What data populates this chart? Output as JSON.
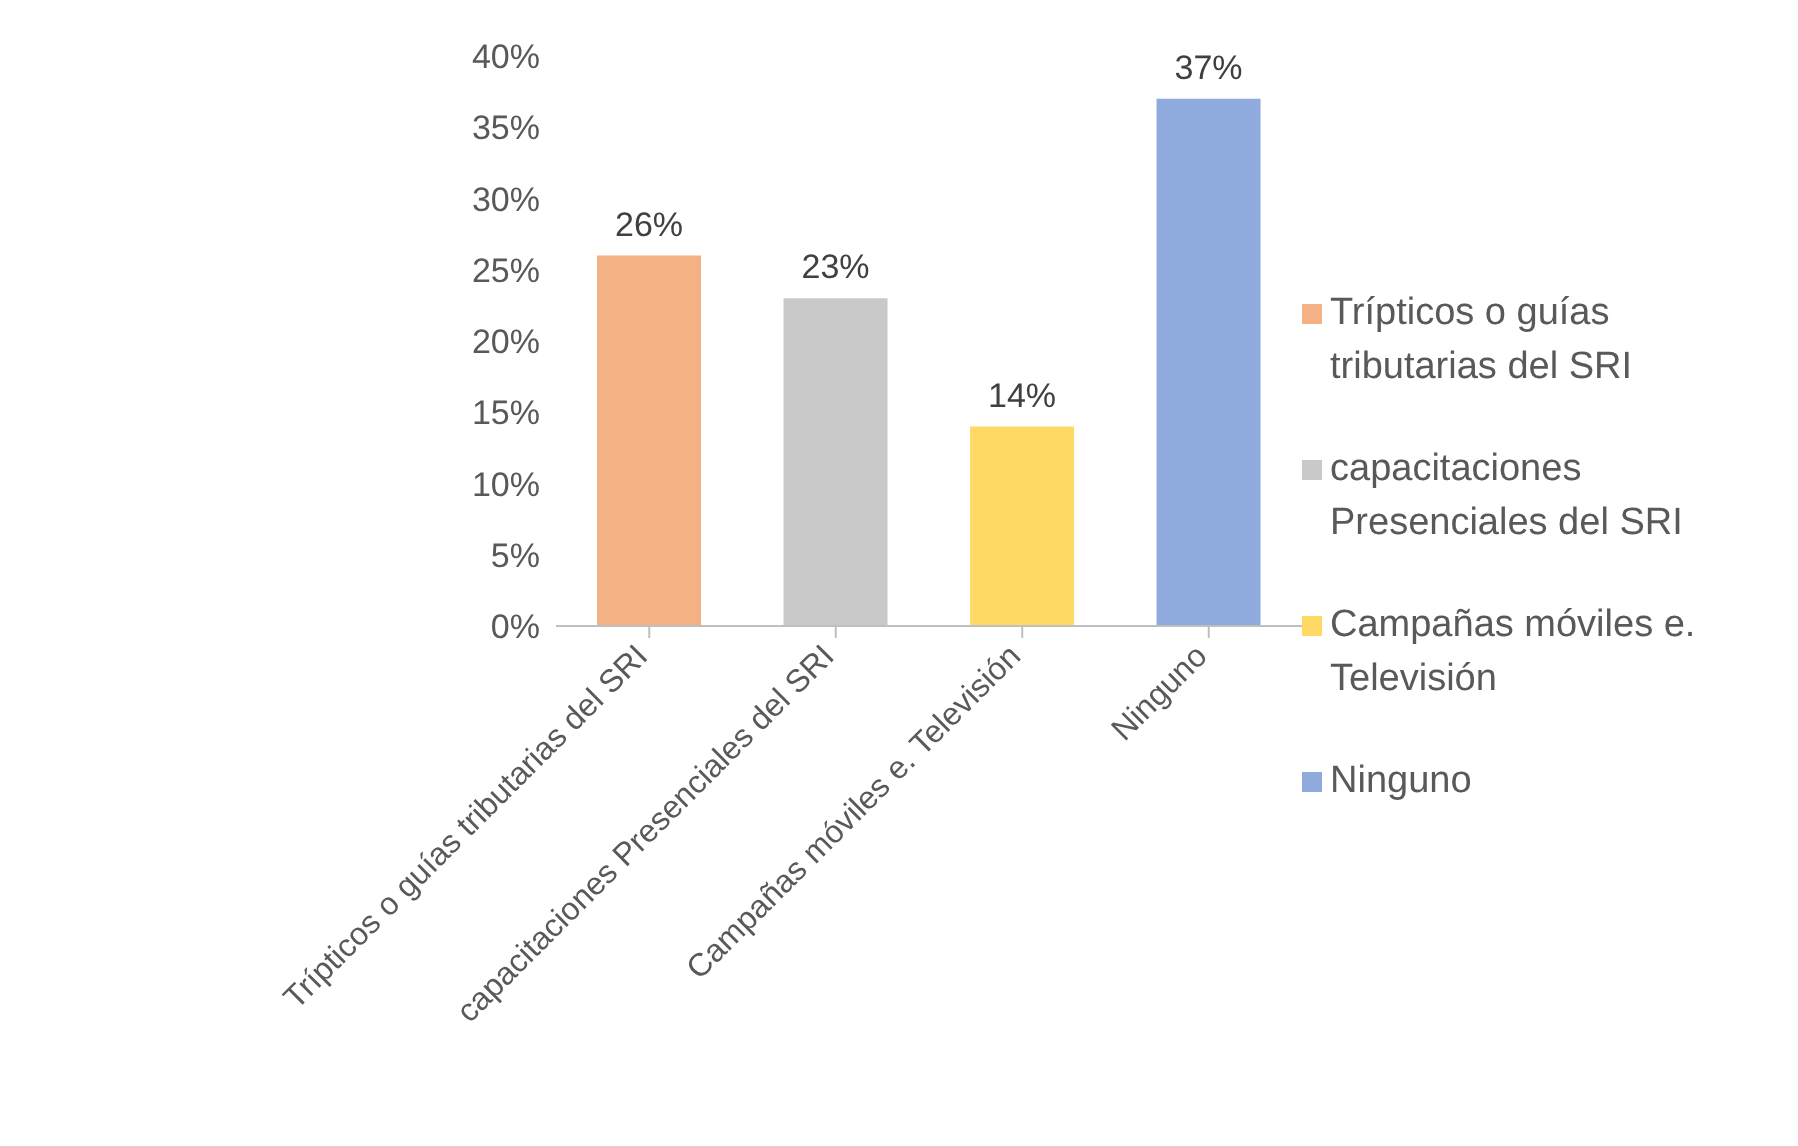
{
  "chart_data": {
    "type": "bar",
    "categories": [
      "Trípticos o guías tributarias del SRI",
      "capacitaciones Presenciales del SRI",
      "Campañas móviles e. Televisión",
      "Ninguno"
    ],
    "stacked": true,
    "series": [
      {
        "name": "Trípticos o guías tributarias del SRI",
        "color": "#f4b183",
        "values": [
          26,
          null,
          null,
          null
        ],
        "value_labels": [
          "26%",
          null,
          null,
          null
        ]
      },
      {
        "name": "capacitaciones Presenciales del SRI",
        "color": "#c9c9c9",
        "values": [
          null,
          23,
          null,
          null
        ],
        "value_labels": [
          null,
          "23%",
          null,
          null
        ]
      },
      {
        "name": "Campañas móviles e. Televisión",
        "color": "#ffd966",
        "values": [
          null,
          null,
          14,
          null
        ],
        "value_labels": [
          null,
          null,
          "14%",
          null
        ]
      },
      {
        "name": "Ninguno",
        "color": "#8faadc",
        "values": [
          null,
          null,
          null,
          37
        ],
        "value_labels": [
          null,
          null,
          null,
          "37%"
        ]
      }
    ],
    "ylim": [
      0,
      40
    ],
    "yticks": [
      {
        "value": 0,
        "label": "0%"
      },
      {
        "value": 5,
        "label": "5%"
      },
      {
        "value": 10,
        "label": "10%"
      },
      {
        "value": 15,
        "label": "15%"
      },
      {
        "value": 20,
        "label": "20%"
      },
      {
        "value": 25,
        "label": "25%"
      },
      {
        "value": 30,
        "label": "30%"
      },
      {
        "value": 35,
        "label": "35%"
      },
      {
        "value": 40,
        "label": "40%"
      }
    ],
    "grid": false,
    "legend": "right"
  }
}
